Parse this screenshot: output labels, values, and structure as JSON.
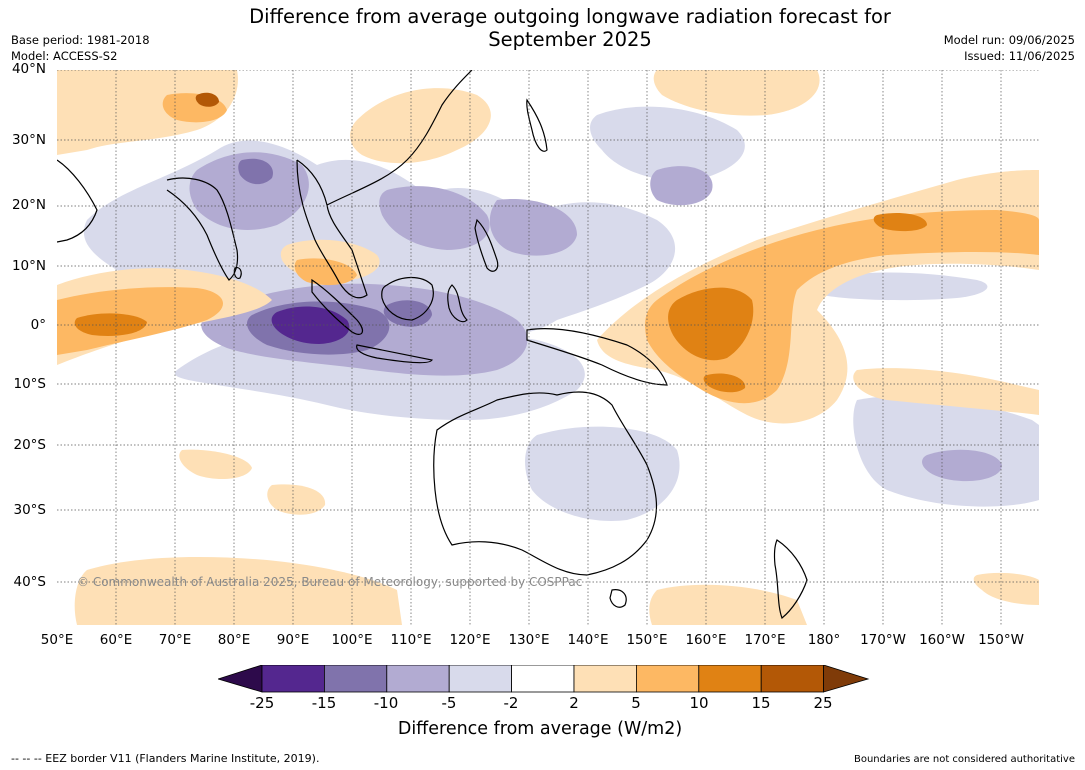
{
  "header": {
    "title_line1": "Difference from average outgoing longwave radiation forecast for",
    "title_line2": "September 2025",
    "base_period": "Base period: 1981-2018",
    "model": "Model: ACCESS-S2",
    "model_run": "Model run: 09/06/2025",
    "issued": "Issued: 11/06/2025"
  },
  "map": {
    "lat_labels": [
      "40°N",
      "30°N",
      "20°N",
      "10°N",
      "0°",
      "10°S",
      "20°S",
      "30°S",
      "40°S"
    ],
    "lon_labels": [
      "50°E",
      "60°E",
      "70°E",
      "80°E",
      "90°E",
      "100°E",
      "110°E",
      "120°E",
      "130°E",
      "140°E",
      "150°E",
      "160°E",
      "170°E",
      "180°",
      "170°W",
      "160°W",
      "150°W"
    ],
    "copyright": "© Commonwealth of Australia 2025, Bureau of Meteorology, supported by COSPPac"
  },
  "colorbar": {
    "ticks": [
      "-25",
      "-15",
      "-10",
      "-5",
      "-2",
      "2",
      "5",
      "10",
      "15",
      "25"
    ],
    "colors": [
      "#2d0a4b",
      "#54278f",
      "#8073ac",
      "#b2abd2",
      "#d8daeb",
      "#ffffff",
      "#fee0b6",
      "#fdb863",
      "#e08214",
      "#b35806",
      "#7f3b08"
    ],
    "label": "Difference from average (W/m2)"
  },
  "footer": {
    "eez_note": "--  --  -- EEZ border V11 (Flanders Marine Institute, 2019).",
    "disclaimer": "Boundaries are not considered authoritative"
  }
}
